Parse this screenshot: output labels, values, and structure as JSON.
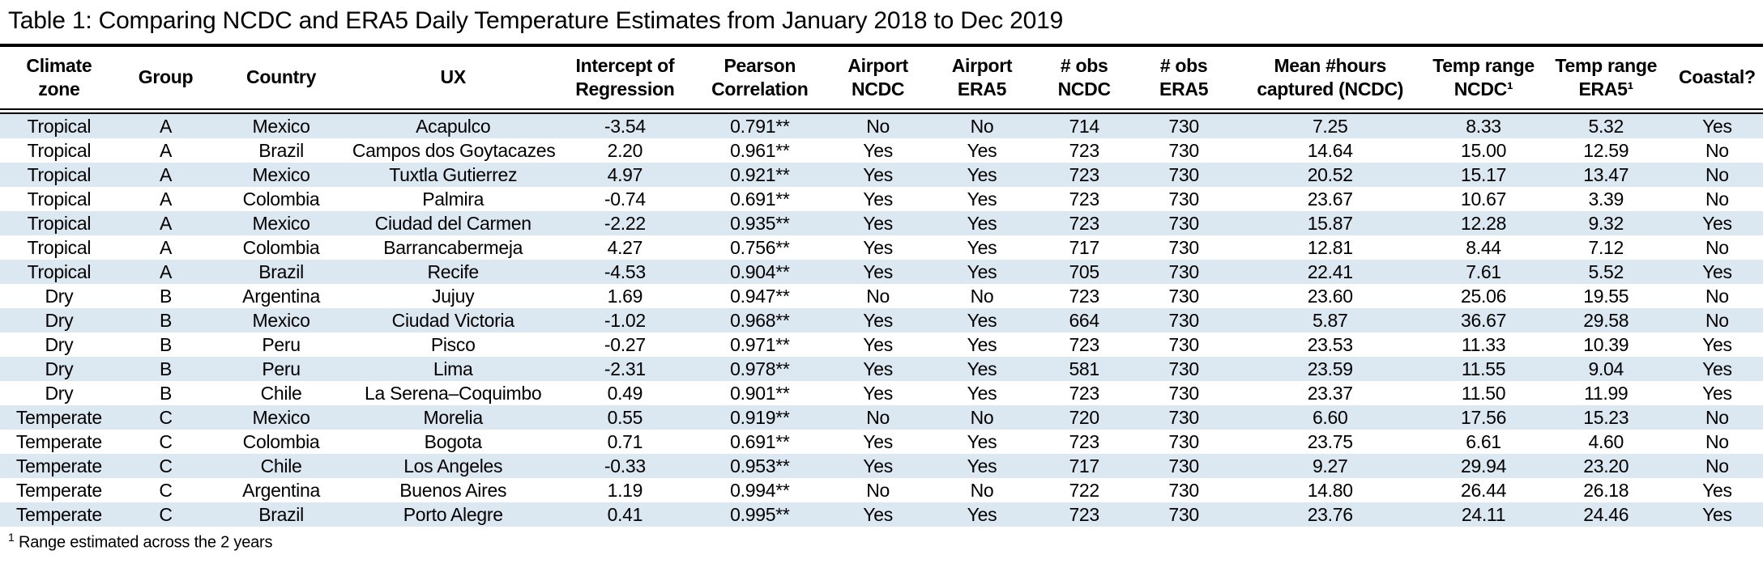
{
  "title": "Table 1: Comparing NCDC and ERA5 Daily Temperature Estimates from January 2018 to Dec 2019",
  "colors": {
    "stripe": "#dbe8f1",
    "rule": "#000000",
    "background": "#ffffff",
    "text": "#000000"
  },
  "table": {
    "columns": [
      {
        "id": "climate-zone",
        "label": "Climate\nzone"
      },
      {
        "id": "group",
        "label": "Group"
      },
      {
        "id": "country",
        "label": "Country"
      },
      {
        "id": "ux",
        "label": "UX"
      },
      {
        "id": "intercept",
        "label": "Intercept of\nRegression"
      },
      {
        "id": "pearson",
        "label": "Pearson\nCorrelation"
      },
      {
        "id": "airport-ncdc",
        "label": "Airport\nNCDC"
      },
      {
        "id": "airport-era5",
        "label": "Airport\nERA5"
      },
      {
        "id": "obs-ncdc",
        "label": "# obs\nNCDC"
      },
      {
        "id": "obs-era5",
        "label": "# obs\nERA5"
      },
      {
        "id": "mean-hours",
        "label": "Mean #hours\ncaptured (NCDC)"
      },
      {
        "id": "temp-range-ncdc",
        "label": "Temp range\nNCDC¹"
      },
      {
        "id": "temp-range-era5",
        "label": "Temp range\nERA5¹"
      },
      {
        "id": "coastal",
        "label": "Coastal?"
      }
    ],
    "rows": [
      [
        "Tropical",
        "A",
        "Mexico",
        "Acapulco",
        "-3.54",
        "0.791**",
        "No",
        "No",
        "714",
        "730",
        "7.25",
        "8.33",
        "5.32",
        "Yes"
      ],
      [
        "Tropical",
        "A",
        "Brazil",
        "Campos dos Goytacazes",
        "2.20",
        "0.961**",
        "Yes",
        "Yes",
        "723",
        "730",
        "14.64",
        "15.00",
        "12.59",
        "No"
      ],
      [
        "Tropical",
        "A",
        "Mexico",
        "Tuxtla Gutierrez",
        "4.97",
        "0.921**",
        "Yes",
        "Yes",
        "723",
        "730",
        "20.52",
        "15.17",
        "13.47",
        "No"
      ],
      [
        "Tropical",
        "A",
        "Colombia",
        "Palmira",
        "-0.74",
        "0.691**",
        "Yes",
        "Yes",
        "723",
        "730",
        "23.67",
        "10.67",
        "3.39",
        "No"
      ],
      [
        "Tropical",
        "A",
        "Mexico",
        "Ciudad del Carmen",
        "-2.22",
        "0.935**",
        "Yes",
        "Yes",
        "723",
        "730",
        "15.87",
        "12.28",
        "9.32",
        "Yes"
      ],
      [
        "Tropical",
        "A",
        "Colombia",
        "Barrancabermeja",
        "4.27",
        "0.756**",
        "Yes",
        "Yes",
        "717",
        "730",
        "12.81",
        "8.44",
        "7.12",
        "No"
      ],
      [
        "Tropical",
        "A",
        "Brazil",
        "Recife",
        "-4.53",
        "0.904**",
        "Yes",
        "Yes",
        "705",
        "730",
        "22.41",
        "7.61",
        "5.52",
        "Yes"
      ],
      [
        "Dry",
        "B",
        "Argentina",
        "Jujuy",
        "1.69",
        "0.947**",
        "No",
        "No",
        "723",
        "730",
        "23.60",
        "25.06",
        "19.55",
        "No"
      ],
      [
        "Dry",
        "B",
        "Mexico",
        "Ciudad Victoria",
        "-1.02",
        "0.968**",
        "Yes",
        "Yes",
        "664",
        "730",
        "5.87",
        "36.67",
        "29.58",
        "No"
      ],
      [
        "Dry",
        "B",
        "Peru",
        "Pisco",
        "-0.27",
        "0.971**",
        "Yes",
        "Yes",
        "723",
        "730",
        "23.53",
        "11.33",
        "10.39",
        "Yes"
      ],
      [
        "Dry",
        "B",
        "Peru",
        "Lima",
        "-2.31",
        "0.978**",
        "Yes",
        "Yes",
        "581",
        "730",
        "23.59",
        "11.55",
        "9.04",
        "Yes"
      ],
      [
        "Dry",
        "B",
        "Chile",
        "La Serena–Coquimbo",
        "0.49",
        "0.901**",
        "Yes",
        "Yes",
        "723",
        "730",
        "23.37",
        "11.50",
        "11.99",
        "Yes"
      ],
      [
        "Temperate",
        "C",
        "Mexico",
        "Morelia",
        "0.55",
        "0.919**",
        "No",
        "No",
        "720",
        "730",
        "6.60",
        "17.56",
        "15.23",
        "No"
      ],
      [
        "Temperate",
        "C",
        "Colombia",
        "Bogota",
        "0.71",
        "0.691**",
        "Yes",
        "Yes",
        "723",
        "730",
        "23.75",
        "6.61",
        "4.60",
        "No"
      ],
      [
        "Temperate",
        "C",
        "Chile",
        "Los Angeles",
        "-0.33",
        "0.953**",
        "Yes",
        "Yes",
        "717",
        "730",
        "9.27",
        "29.94",
        "23.20",
        "No"
      ],
      [
        "Temperate",
        "C",
        "Argentina",
        "Buenos Aires",
        "1.19",
        "0.994**",
        "No",
        "No",
        "722",
        "730",
        "14.80",
        "26.44",
        "26.18",
        "Yes"
      ],
      [
        "Temperate",
        "C",
        "Brazil",
        "Porto Alegre",
        "0.41",
        "0.995**",
        "Yes",
        "Yes",
        "723",
        "730",
        "23.76",
        "24.11",
        "24.46",
        "Yes"
      ]
    ]
  },
  "footnote": {
    "marker": "1",
    "text": " Range estimated across the 2 years"
  }
}
